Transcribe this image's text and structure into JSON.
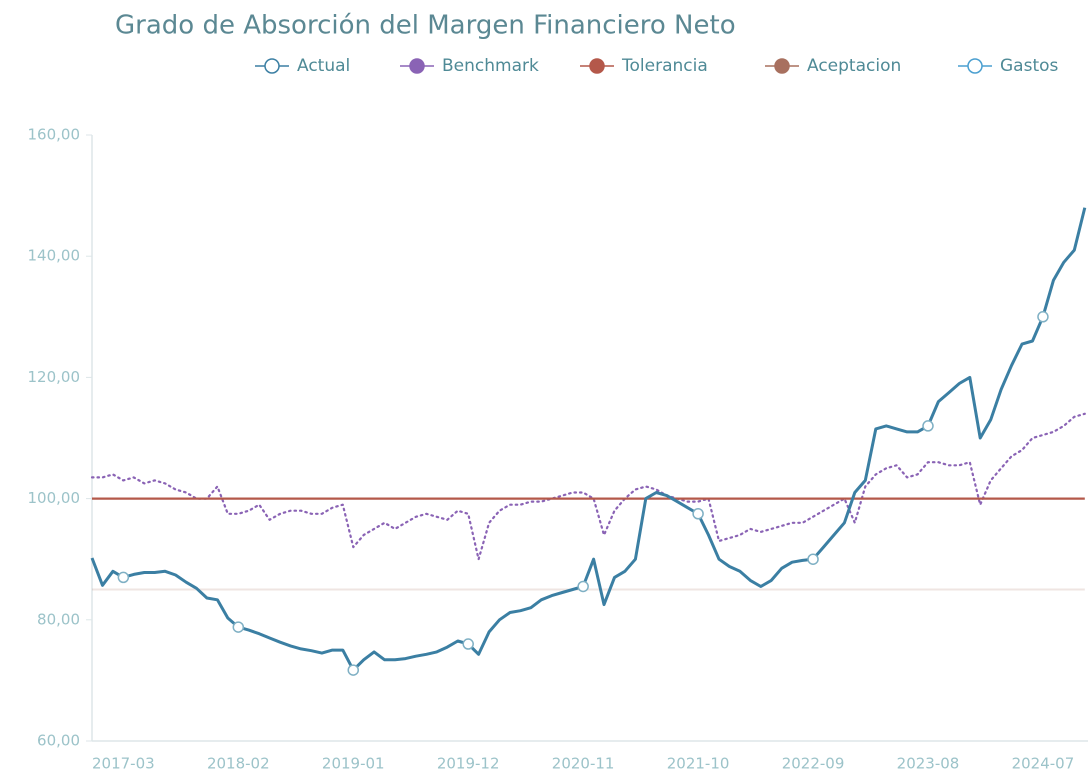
{
  "chart_data": {
    "type": "line",
    "title": "Grado de Absorción del Margen Financiero Neto",
    "categories": [
      null,
      null,
      null,
      "2017-03",
      null,
      null,
      null,
      null,
      null,
      null,
      null,
      null,
      null,
      null,
      "2018-02",
      null,
      null,
      null,
      null,
      null,
      null,
      null,
      null,
      null,
      null,
      "2019-01",
      null,
      null,
      null,
      null,
      null,
      null,
      null,
      null,
      null,
      null,
      "2019-12",
      null,
      null,
      null,
      null,
      null,
      null,
      null,
      null,
      null,
      null,
      "2020-11",
      null,
      null,
      null,
      null,
      null,
      null,
      null,
      null,
      null,
      null,
      "2021-10",
      null,
      null,
      null,
      null,
      null,
      null,
      null,
      null,
      null,
      null,
      "2022-09",
      null,
      null,
      null,
      null,
      null,
      null,
      null,
      null,
      null,
      null,
      "2023-08",
      null,
      null,
      null,
      null,
      null,
      null,
      null,
      null,
      null,
      null,
      "2024-07",
      null,
      null,
      null,
      null
    ],
    "series": [
      {
        "name": "Actual",
        "color": "#3b7fa3",
        "style": "solid",
        "marker": "open",
        "values": [
          90.2,
          85.7,
          88,
          87,
          87.5,
          87.8,
          87.8,
          88,
          87.4,
          86.2,
          85.2,
          83.6,
          83.3,
          80.3,
          78.8,
          78.3,
          77.7,
          77,
          76.3,
          75.7,
          75.2,
          74.9,
          74.5,
          75,
          75,
          71.7,
          73.4,
          74.7,
          73.4,
          73.4,
          73.6,
          74,
          74.3,
          74.7,
          75.5,
          76.5,
          76,
          74.3,
          78,
          80,
          81.2,
          81.5,
          82,
          83.3,
          84,
          84.5,
          85,
          85.5,
          90,
          82.5,
          87,
          88,
          90,
          100,
          101,
          100.5,
          99.5,
          98.5,
          97.5,
          94,
          90,
          88.8,
          88,
          86.5,
          85.5,
          86.5,
          88.5,
          89.5,
          89.8,
          90,
          92,
          94,
          96,
          101,
          103,
          111.5,
          112,
          111.5,
          111,
          111,
          112,
          116,
          117.5,
          119,
          120,
          110,
          113,
          118,
          122,
          125.5,
          126,
          130,
          136,
          139,
          141,
          148
        ]
      },
      {
        "name": "Benchmark",
        "color": "#8a63b5",
        "style": "dotted",
        "marker": "filled",
        "values": [
          103.5,
          103.5,
          104,
          103,
          103.5,
          102.5,
          103,
          102.5,
          101.5,
          101,
          100,
          100,
          102,
          97.5,
          97.5,
          98,
          99,
          96.5,
          97.5,
          98,
          98,
          97.5,
          97.5,
          98.5,
          99,
          92,
          94,
          95,
          96,
          95,
          96,
          97,
          97.5,
          97,
          96.5,
          98,
          97.5,
          90,
          96,
          98,
          99,
          99,
          99.5,
          99.5,
          100,
          100.5,
          101,
          101,
          100,
          94,
          98,
          100,
          101.5,
          102,
          101.5,
          100.5,
          100,
          99.5,
          99.5,
          100,
          93,
          93.5,
          94,
          95,
          94.5,
          95,
          95.5,
          96,
          96,
          97,
          98,
          99,
          100,
          96,
          102,
          104,
          105,
          105.5,
          103.5,
          104,
          106,
          106,
          105.5,
          105.5,
          106,
          99,
          103,
          105,
          107,
          108,
          110,
          110.5,
          111,
          112,
          113.5,
          114
        ]
      },
      {
        "name": "Tolerancia",
        "color": "#b4584a",
        "style": "solid",
        "marker": "filled",
        "values": [
          100,
          100,
          100,
          100,
          100,
          100,
          100,
          100,
          100,
          100,
          100,
          100,
          100,
          100,
          100,
          100,
          100,
          100,
          100,
          100,
          100,
          100,
          100,
          100,
          100,
          100,
          100,
          100,
          100,
          100,
          100,
          100,
          100,
          100,
          100,
          100,
          100,
          100,
          100,
          100,
          100,
          100,
          100,
          100,
          100,
          100,
          100,
          100,
          100,
          100,
          100,
          100,
          100,
          100,
          100,
          100,
          100,
          100,
          100,
          100,
          100,
          100,
          100,
          100,
          100,
          100,
          100,
          100,
          100,
          100,
          100,
          100,
          100,
          100,
          100,
          100,
          100,
          100,
          100,
          100,
          100,
          100,
          100,
          100,
          100,
          100,
          100,
          100,
          100,
          100,
          100,
          100,
          100,
          100,
          100,
          100
        ]
      },
      {
        "name": "Aceptacion",
        "color": "#a8705f",
        "style": "faint",
        "marker": "filled",
        "values": [
          85,
          85,
          85,
          85,
          85,
          85,
          85,
          85,
          85,
          85,
          85,
          85,
          85,
          85,
          85,
          85,
          85,
          85,
          85,
          85,
          85,
          85,
          85,
          85,
          85,
          85,
          85,
          85,
          85,
          85,
          85,
          85,
          85,
          85,
          85,
          85,
          85,
          85,
          85,
          85,
          85,
          85,
          85,
          85,
          85,
          85,
          85,
          85,
          85,
          85,
          85,
          85,
          85,
          85,
          85,
          85,
          85,
          85,
          85,
          85,
          85,
          85,
          85,
          85,
          85,
          85,
          85,
          85,
          85,
          85,
          85,
          85,
          85,
          85,
          85,
          85,
          85,
          85,
          85,
          85,
          85,
          85,
          85,
          85,
          85,
          85,
          85,
          85,
          85,
          85,
          85,
          85,
          85,
          85,
          85,
          85
        ]
      },
      {
        "name": "Gastos",
        "color": "#4a9fd0",
        "style": "solid",
        "marker": "open",
        "values": [
          null,
          null,
          null,
          null,
          null,
          null,
          null,
          null,
          null,
          null,
          null,
          null,
          null,
          null,
          null,
          null,
          null,
          null,
          null,
          null,
          null,
          null,
          null,
          null,
          null,
          null,
          null,
          null,
          null,
          null,
          null,
          null,
          null,
          null,
          null,
          null,
          null,
          null,
          null,
          null,
          null,
          null,
          null,
          null,
          null,
          null,
          null,
          null,
          null,
          null,
          null,
          null,
          null,
          null,
          null,
          null,
          null,
          null,
          null,
          null,
          null,
          null,
          null,
          null,
          null,
          null,
          null,
          null,
          null,
          null,
          null,
          null,
          null,
          null,
          null,
          null,
          null,
          null,
          null,
          null,
          null,
          null,
          null,
          null,
          null,
          null,
          null,
          null,
          null,
          null,
          null,
          null,
          null,
          null,
          null,
          null
        ]
      }
    ],
    "ylim": [
      60,
      160
    ],
    "yticks": [
      {
        "value": 60,
        "label": "60,00"
      },
      {
        "value": 80,
        "label": "80,00"
      },
      {
        "value": 100,
        "label": "100,00"
      },
      {
        "value": 120,
        "label": "120,00"
      },
      {
        "value": 140,
        "label": "140,00"
      },
      {
        "value": 160,
        "label": "160,00"
      }
    ],
    "grid": false
  }
}
